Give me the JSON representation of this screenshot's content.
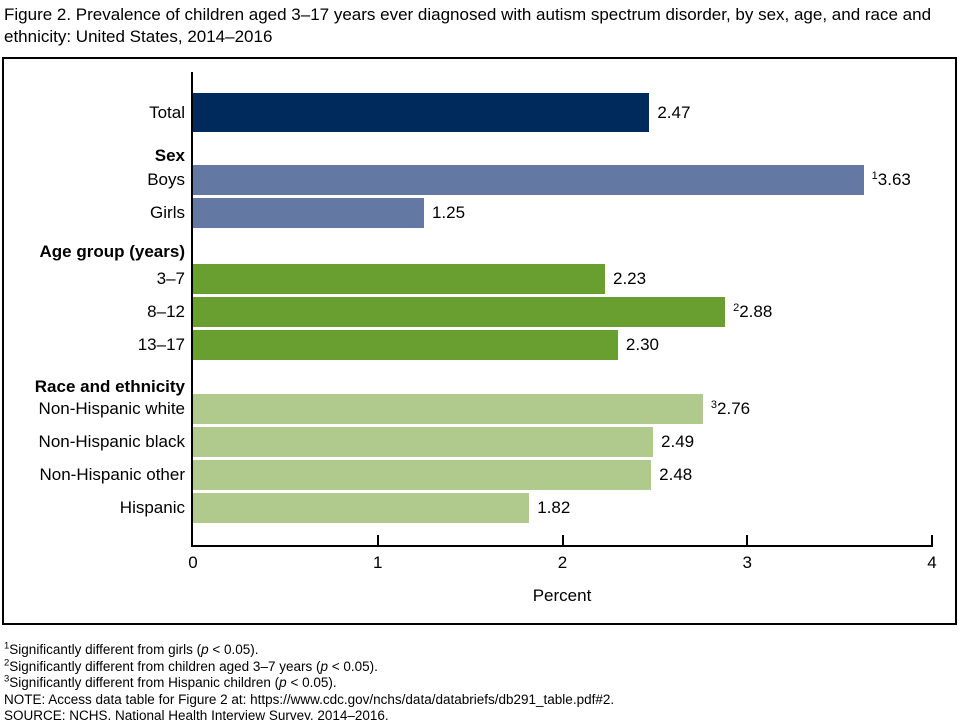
{
  "title": "Figure 2. Prevalence of children aged 3–17 years ever diagnosed with autism spectrum disorder, by sex, age, and race and ethnicity: United States, 2014–2016",
  "chart_data": {
    "type": "bar",
    "orientation": "horizontal",
    "xlabel": "Percent",
    "xlim": [
      0,
      4
    ],
    "xticks": [
      0,
      1,
      2,
      3,
      4
    ],
    "grid": false,
    "legend": "none",
    "colors": {
      "total": "#002a5c",
      "sex": "#6478a4",
      "age": "#699e30",
      "race": "#b0c98d"
    },
    "rows": [
      {
        "kind": "bar",
        "label": "Total",
        "value": 2.47,
        "display": "2.47",
        "sup": "",
        "color_key": "total"
      },
      {
        "kind": "header",
        "label": "Sex"
      },
      {
        "kind": "bar",
        "label": "Boys",
        "value": 3.63,
        "display": "3.63",
        "sup": "1",
        "color_key": "sex"
      },
      {
        "kind": "bar",
        "label": "Girls",
        "value": 1.25,
        "display": "1.25",
        "sup": "",
        "color_key": "sex"
      },
      {
        "kind": "header",
        "label": "Age group (years)"
      },
      {
        "kind": "bar",
        "label": "3–7",
        "value": 2.23,
        "display": "2.23",
        "sup": "",
        "color_key": "age"
      },
      {
        "kind": "bar",
        "label": "8–12",
        "value": 2.88,
        "display": "2.88",
        "sup": "2",
        "color_key": "age"
      },
      {
        "kind": "bar",
        "label": "13–17",
        "value": 2.3,
        "display": "2.30",
        "sup": "",
        "color_key": "age"
      },
      {
        "kind": "header",
        "label": "Race and ethnicity"
      },
      {
        "kind": "bar",
        "label": "Non-Hispanic white",
        "value": 2.76,
        "display": "2.76",
        "sup": "3",
        "color_key": "race"
      },
      {
        "kind": "bar",
        "label": "Non-Hispanic black",
        "value": 2.49,
        "display": "2.49",
        "sup": "",
        "color_key": "race"
      },
      {
        "kind": "bar",
        "label": "Non-Hispanic other",
        "value": 2.48,
        "display": "2.48",
        "sup": "",
        "color_key": "race"
      },
      {
        "kind": "bar",
        "label": "Hispanic",
        "value": 1.82,
        "display": "1.82",
        "sup": "",
        "color_key": "race"
      }
    ]
  },
  "footnotes": [
    {
      "segments": [
        {
          "text": "1",
          "sup": true
        },
        {
          "text": "Significantly different from girls ("
        },
        {
          "text": "p",
          "italic": true
        },
        {
          "text": " < 0.05)."
        }
      ]
    },
    {
      "segments": [
        {
          "text": "2",
          "sup": true
        },
        {
          "text": "Significantly different from children aged 3–7 years ("
        },
        {
          "text": "p",
          "italic": true
        },
        {
          "text": " < 0.05)."
        }
      ]
    },
    {
      "segments": [
        {
          "text": "3",
          "sup": true
        },
        {
          "text": "Significantly different from Hispanic children ("
        },
        {
          "text": "p",
          "italic": true
        },
        {
          "text": " < 0.05)."
        }
      ]
    },
    {
      "segments": [
        {
          "text": "NOTE: Access data table for Figure 2 at: https://www.cdc.gov/nchs/data/databriefs/db291_table.pdf#2."
        }
      ]
    },
    {
      "segments": [
        {
          "text": "SOURCE: NCHS, National Health Interview Survey, 2014–2016."
        }
      ]
    }
  ]
}
